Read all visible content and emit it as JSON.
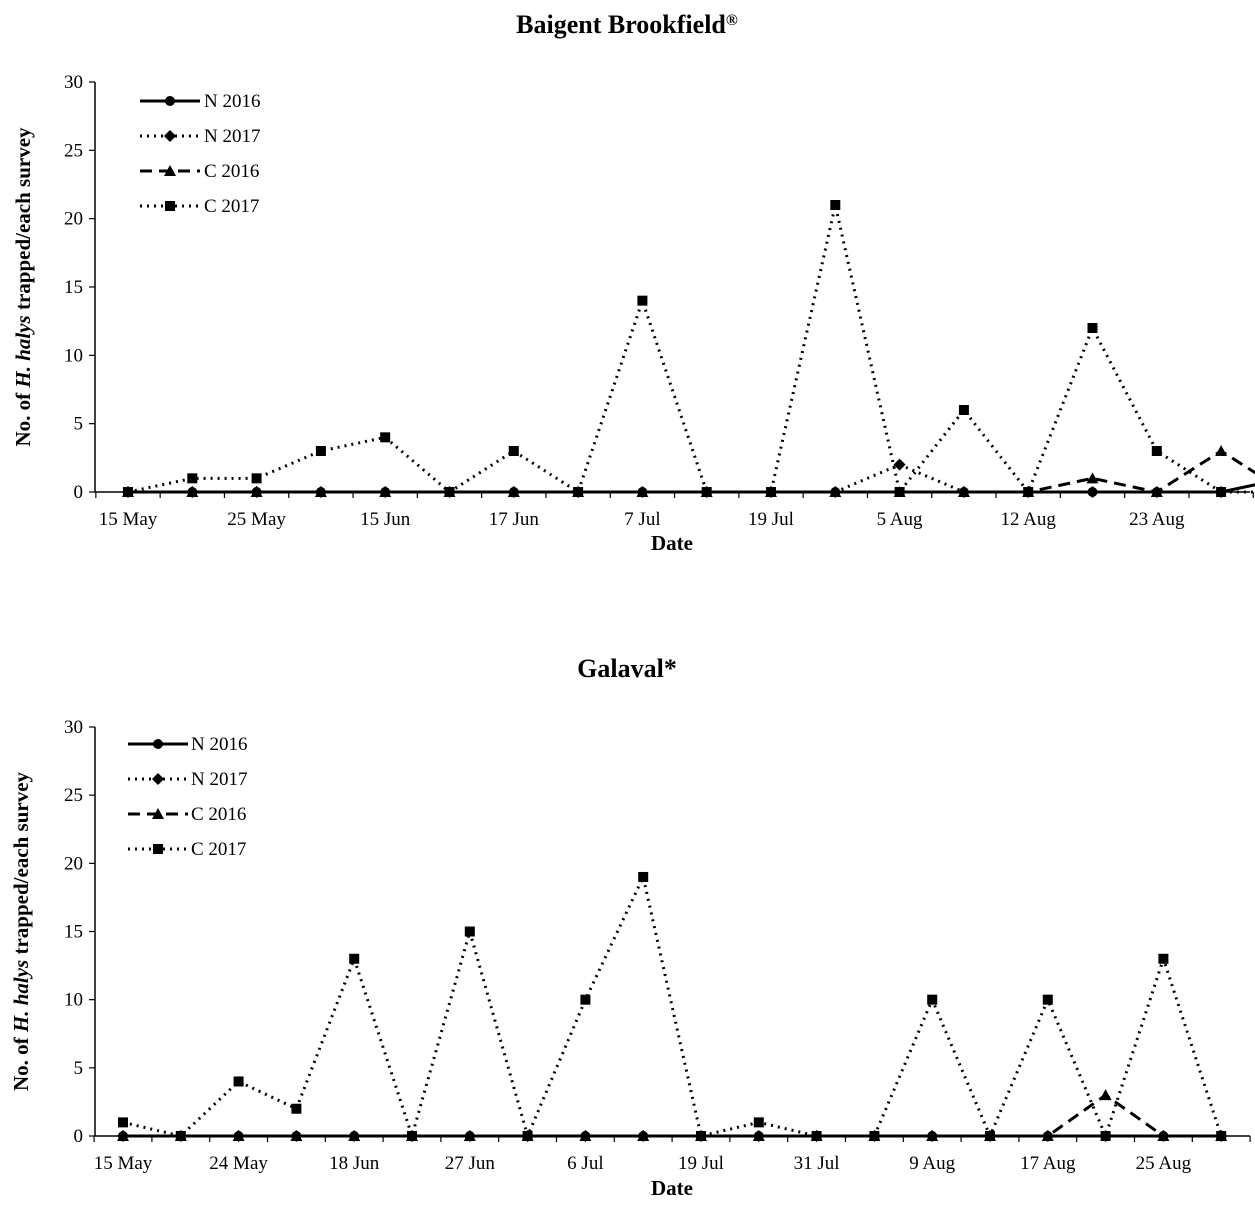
{
  "chart_data": [
    {
      "type": "line",
      "title": "Baigent Brookfield",
      "title_superscript": "®",
      "xlabel": "Date",
      "ylabel_prefix": "No. of ",
      "ylabel_italic": "H. halys",
      "ylabel_suffix": " trapped/each survey",
      "ylim": [
        0,
        30
      ],
      "yticks": [
        0,
        5,
        10,
        15,
        20,
        25,
        30
      ],
      "xtick_labels": [
        "15 May",
        "25 May",
        "15 Jun",
        "17 Jun",
        "7 Jul",
        "19 Jul",
        "5 Aug",
        "12 Aug",
        "23 Aug"
      ],
      "legend_position": "top-left",
      "series": [
        {
          "name": "N 2016",
          "style": "solid",
          "marker": "circle",
          "values": [
            0,
            0,
            0,
            0,
            0,
            0,
            0,
            0,
            0,
            0,
            0,
            0,
            0,
            0,
            0,
            0,
            0,
            0,
            1,
            0
          ]
        },
        {
          "name": "N 2017",
          "style": "dotted",
          "marker": "diamond",
          "values": [
            0,
            0,
            0,
            0,
            0,
            0,
            0,
            0,
            0,
            0,
            0,
            0,
            2,
            0,
            0,
            0,
            0,
            0,
            0,
            0
          ]
        },
        {
          "name": "C 2016",
          "style": "dashed",
          "marker": "triangle",
          "values": [
            0,
            0,
            0,
            0,
            0,
            0,
            0,
            0,
            0,
            0,
            0,
            0,
            0,
            0,
            0,
            1,
            0,
            3,
            0,
            null
          ]
        },
        {
          "name": "C 2017",
          "style": "dotted",
          "marker": "square",
          "values": [
            0,
            1,
            1,
            3,
            4,
            0,
            3,
            0,
            14,
            0,
            0,
            21,
            0,
            6,
            0,
            12,
            3,
            0,
            null,
            null
          ]
        }
      ]
    },
    {
      "type": "line",
      "title": "Galaval*",
      "title_superscript": "",
      "xlabel": "Date",
      "ylabel_prefix": "No. of ",
      "ylabel_italic": "H. halys",
      "ylabel_suffix": " trapped/each survey",
      "ylim": [
        0,
        30
      ],
      "yticks": [
        0,
        5,
        10,
        15,
        20,
        25,
        30
      ],
      "xtick_labels": [
        "15 May",
        "24 May",
        "18 Jun",
        "27 Jun",
        "6 Jul",
        "19 Jul",
        "31 Jul",
        "9 Aug",
        "17 Aug",
        "25 Aug"
      ],
      "legend_position": "top-left",
      "series": [
        {
          "name": "N 2016",
          "style": "solid",
          "marker": "circle",
          "values": [
            0,
            0,
            0,
            0,
            0,
            0,
            0,
            0,
            0,
            0,
            0,
            0,
            0,
            0,
            0,
            0,
            0,
            0,
            0,
            0
          ]
        },
        {
          "name": "N 2017",
          "style": "dotted",
          "marker": "diamond",
          "values": [
            0,
            0,
            0,
            0,
            0,
            0,
            0,
            0,
            0,
            0,
            0,
            0,
            0,
            0,
            0,
            0,
            0,
            0,
            0,
            0
          ]
        },
        {
          "name": "C 2016",
          "style": "dashed",
          "marker": "triangle",
          "values": [
            0,
            0,
            0,
            0,
            0,
            0,
            0,
            0,
            0,
            0,
            0,
            0,
            0,
            0,
            0,
            0,
            0,
            3,
            0,
            0
          ]
        },
        {
          "name": "C 2017",
          "style": "dotted",
          "marker": "square",
          "values": [
            1,
            0,
            4,
            2,
            13,
            0,
            15,
            0,
            10,
            19,
            0,
            1,
            0,
            0,
            10,
            0,
            10,
            0,
            13,
            0
          ]
        }
      ]
    }
  ]
}
